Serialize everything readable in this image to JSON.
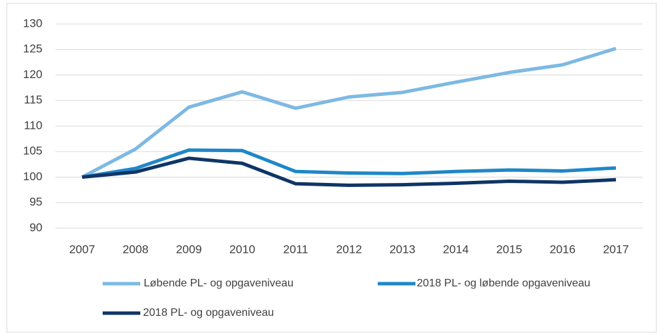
{
  "chart_data": {
    "type": "line",
    "categories": [
      "2007",
      "2008",
      "2009",
      "2010",
      "2011",
      "2012",
      "2013",
      "2014",
      "2015",
      "2016",
      "2017"
    ],
    "series": [
      {
        "name": "Løbende PL- og opgaveniveau",
        "color": "#7db9e3",
        "values": [
          100,
          105.5,
          113.7,
          116.7,
          113.5,
          115.7,
          116.6,
          118.6,
          120.5,
          122.0,
          125.2
        ]
      },
      {
        "name": "2018 PL- og løbende opgaveniveau",
        "color": "#1f87c8",
        "values": [
          100,
          101.7,
          105.3,
          105.2,
          101.1,
          100.8,
          100.7,
          101.1,
          101.4,
          101.2,
          101.8
        ]
      },
      {
        "name": "2018 PL- og opgaveniveau",
        "color": "#0f3566",
        "values": [
          100,
          101.0,
          103.7,
          102.7,
          98.7,
          98.4,
          98.5,
          98.8,
          99.2,
          99.0,
          99.5
        ]
      }
    ],
    "ylim": [
      90,
      130
    ],
    "yticks": [
      90,
      95,
      100,
      105,
      110,
      115,
      120,
      125,
      130
    ],
    "grid": true,
    "legend": "bottom"
  }
}
